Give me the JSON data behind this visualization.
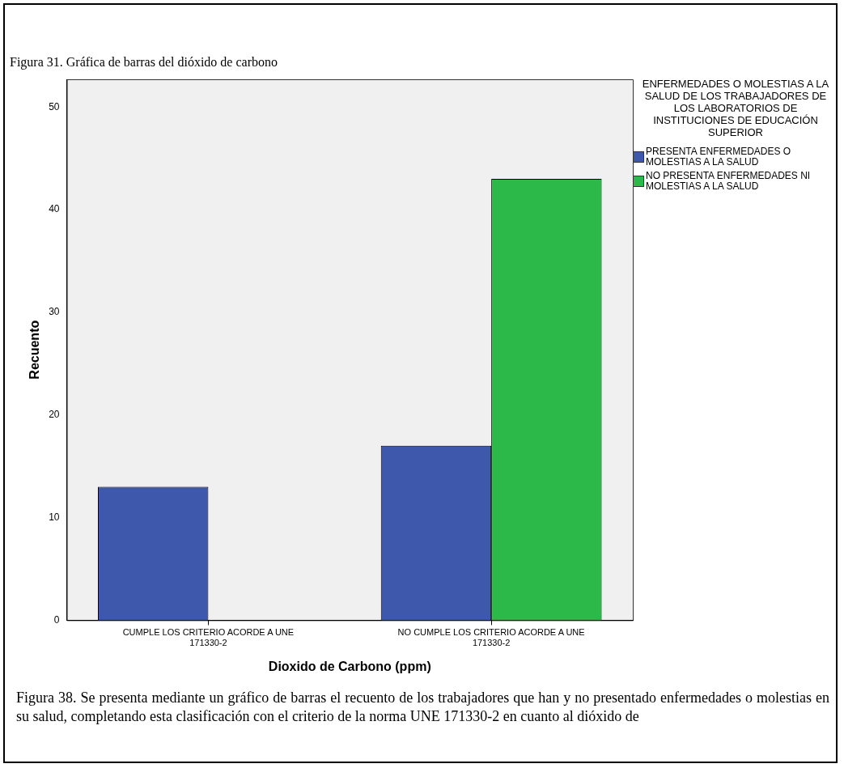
{
  "chart_data": {
    "type": "bar",
    "title": "Figura 31. Gráfica de barras del dióxido de carbono",
    "xlabel": "Dioxido de Carbono (ppm)",
    "ylabel": "Recuento",
    "legend_title": "ENFERMEDADES O MOLESTIAS A LA SALUD DE LOS TRABAJADORES DE LOS LABORATORIOS DE INSTITUCIONES DE EDUCACIÓN SUPERIOR",
    "categories": [
      "CUMPLE LOS CRITERIO ACORDE A UNE 171330-2",
      "NO CUMPLE LOS CRITERIO ACORDE A UNE 171330-2"
    ],
    "series": [
      {
        "name": "PRESENTA ENFERMEDADES O MOLESTIAS A LA SALUD",
        "color": "#3e58ac",
        "values": [
          13,
          17
        ]
      },
      {
        "name": "NO PRESENTA ENFERMEDADES NI MOLESTIAS A LA SALUD",
        "color": "#2db84a",
        "values": [
          0,
          43
        ]
      }
    ],
    "ylim": [
      0,
      52.7
    ],
    "yticks": [
      0,
      10,
      20,
      30,
      40,
      50
    ],
    "grid": false,
    "legend": "right",
    "annotations": [
      "Figura 38.  Se presenta mediante un gráfico de barras el recuento de los trabajadores que han y no presentado enfermedades o molestias en su salud, completando esta clasificación con el criterio de la norma UNE 171330-2 en cuanto al dióxido de"
    ]
  }
}
